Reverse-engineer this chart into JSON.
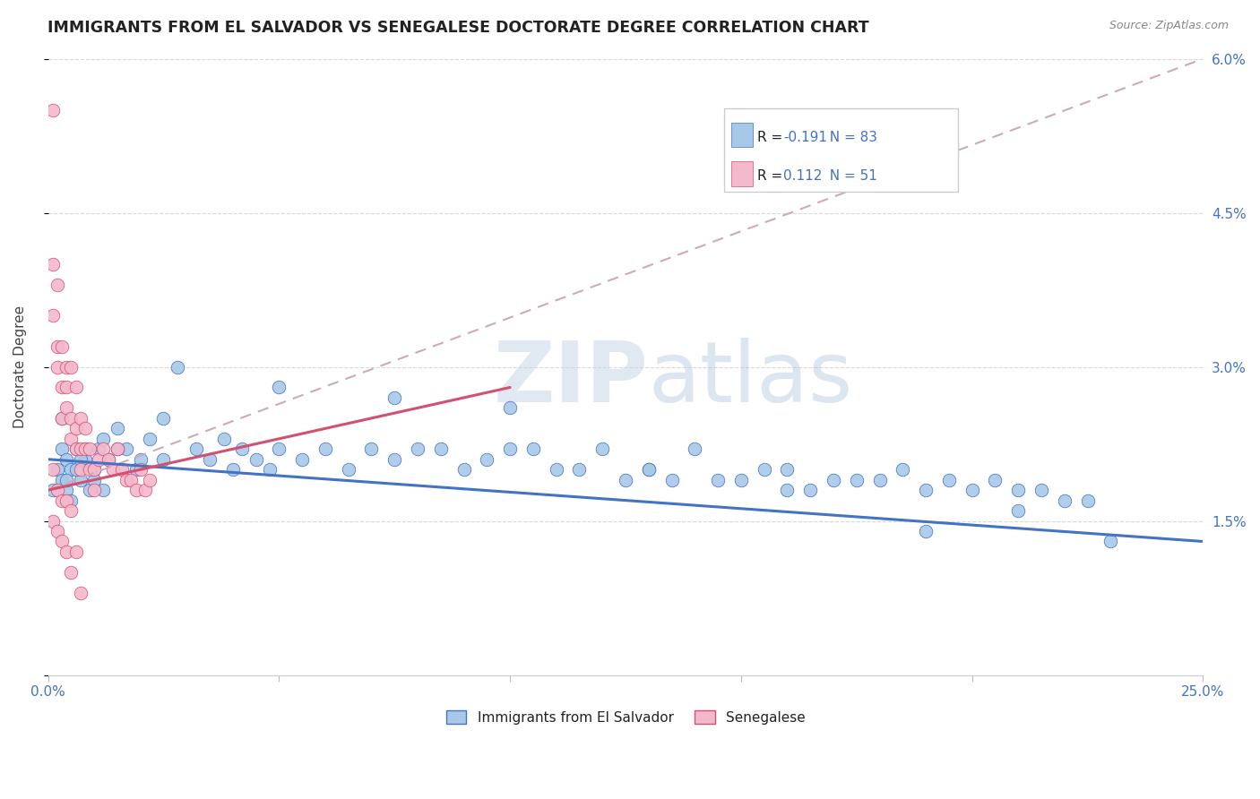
{
  "title": "IMMIGRANTS FROM EL SALVADOR VS SENEGALESE DOCTORATE DEGREE CORRELATION CHART",
  "source_text": "Source: ZipAtlas.com",
  "ylabel": "Doctorate Degree",
  "xlim": [
    0.0,
    0.25
  ],
  "ylim": [
    0.0,
    0.06
  ],
  "color_blue": "#a8c8e8",
  "color_pink": "#f4b8cc",
  "trendline_blue": "#4472c4",
  "trendline_pink": "#d45070",
  "trendline_dashed": "#ccaabb",
  "watermark_color": "#c8d8e8",
  "background_color": "#ffffff",
  "grid_color": "#d8d8d8",
  "title_fontsize": 12.5,
  "legend_r1_label": "R = ",
  "legend_r1_val": "-0.191",
  "legend_n1": "N = 83",
  "legend_r2_label": "R =  ",
  "legend_r2_val": "0.112",
  "legend_n2": "N = 51",
  "blue_x": [
    0.001,
    0.002,
    0.003,
    0.003,
    0.004,
    0.004,
    0.005,
    0.005,
    0.006,
    0.007,
    0.008,
    0.009,
    0.01,
    0.011,
    0.012,
    0.013,
    0.015,
    0.017,
    0.019,
    0.022,
    0.025,
    0.028,
    0.032,
    0.035,
    0.038,
    0.04,
    0.042,
    0.045,
    0.048,
    0.05,
    0.055,
    0.06,
    0.065,
    0.07,
    0.075,
    0.08,
    0.085,
    0.09,
    0.095,
    0.1,
    0.105,
    0.11,
    0.115,
    0.12,
    0.125,
    0.13,
    0.135,
    0.14,
    0.145,
    0.15,
    0.155,
    0.16,
    0.165,
    0.17,
    0.175,
    0.18,
    0.185,
    0.19,
    0.195,
    0.2,
    0.205,
    0.21,
    0.215,
    0.22,
    0.225,
    0.003,
    0.006,
    0.008,
    0.01,
    0.015,
    0.02,
    0.025,
    0.05,
    0.075,
    0.1,
    0.13,
    0.16,
    0.19,
    0.21,
    0.23,
    0.004,
    0.007,
    0.012
  ],
  "blue_y": [
    0.018,
    0.02,
    0.019,
    0.022,
    0.021,
    0.018,
    0.02,
    0.017,
    0.022,
    0.019,
    0.021,
    0.018,
    0.02,
    0.022,
    0.023,
    0.021,
    0.024,
    0.022,
    0.02,
    0.023,
    0.021,
    0.03,
    0.022,
    0.021,
    0.023,
    0.02,
    0.022,
    0.021,
    0.02,
    0.022,
    0.021,
    0.022,
    0.02,
    0.022,
    0.021,
    0.022,
    0.022,
    0.02,
    0.021,
    0.022,
    0.022,
    0.02,
    0.02,
    0.022,
    0.019,
    0.02,
    0.019,
    0.022,
    0.019,
    0.019,
    0.02,
    0.02,
    0.018,
    0.019,
    0.019,
    0.019,
    0.02,
    0.018,
    0.019,
    0.018,
    0.019,
    0.018,
    0.018,
    0.017,
    0.017,
    0.025,
    0.02,
    0.022,
    0.019,
    0.022,
    0.021,
    0.025,
    0.028,
    0.027,
    0.026,
    0.02,
    0.018,
    0.014,
    0.016,
    0.013,
    0.019,
    0.021,
    0.018
  ],
  "pink_x": [
    0.001,
    0.001,
    0.001,
    0.002,
    0.002,
    0.002,
    0.003,
    0.003,
    0.003,
    0.004,
    0.004,
    0.004,
    0.005,
    0.005,
    0.005,
    0.006,
    0.006,
    0.006,
    0.007,
    0.007,
    0.007,
    0.008,
    0.008,
    0.009,
    0.009,
    0.01,
    0.01,
    0.011,
    0.012,
    0.013,
    0.014,
    0.015,
    0.016,
    0.017,
    0.018,
    0.019,
    0.02,
    0.021,
    0.022,
    0.001,
    0.002,
    0.003,
    0.004,
    0.005,
    0.001,
    0.002,
    0.003,
    0.004,
    0.005,
    0.006,
    0.007
  ],
  "pink_y": [
    0.055,
    0.04,
    0.035,
    0.038,
    0.032,
    0.03,
    0.028,
    0.032,
    0.025,
    0.03,
    0.028,
    0.026,
    0.03,
    0.025,
    0.023,
    0.028,
    0.024,
    0.022,
    0.025,
    0.022,
    0.02,
    0.024,
    0.022,
    0.022,
    0.02,
    0.02,
    0.018,
    0.021,
    0.022,
    0.021,
    0.02,
    0.022,
    0.02,
    0.019,
    0.019,
    0.018,
    0.02,
    0.018,
    0.019,
    0.02,
    0.018,
    0.017,
    0.017,
    0.016,
    0.015,
    0.014,
    0.013,
    0.012,
    0.01,
    0.012,
    0.008
  ],
  "blue_trendline_x": [
    0.0,
    0.25
  ],
  "blue_trendline_y": [
    0.021,
    0.013
  ],
  "pink_trendline_x": [
    0.0,
    0.25
  ],
  "pink_trendline_y": [
    0.018,
    0.06
  ]
}
